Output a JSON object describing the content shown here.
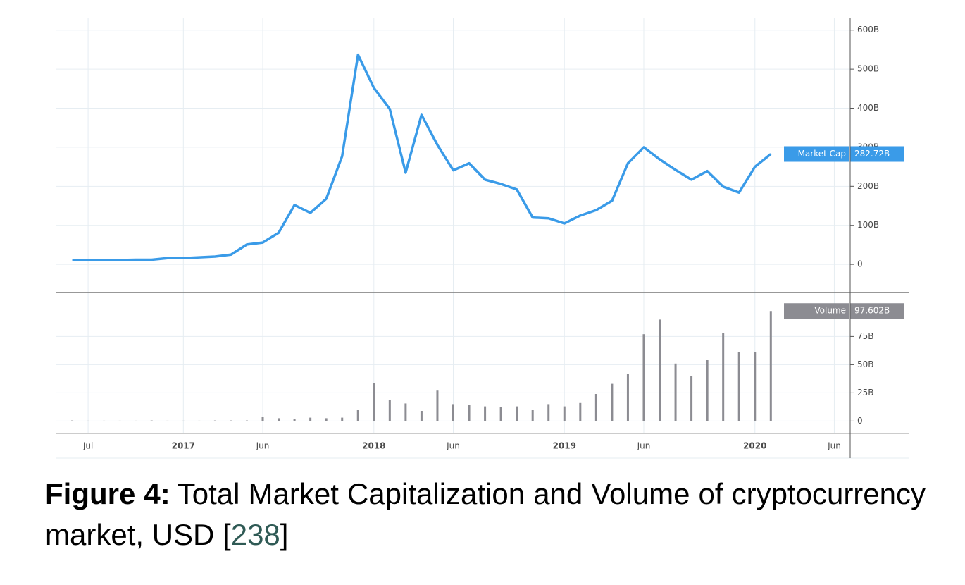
{
  "chart_data": [
    {
      "type": "line",
      "x": [
        "2016-06",
        "2016-07",
        "2016-08",
        "2016-09",
        "2016-10",
        "2016-11",
        "2016-12",
        "2017-01",
        "2017-02",
        "2017-03",
        "2017-04",
        "2017-05",
        "2017-06",
        "2017-07",
        "2017-08",
        "2017-09",
        "2017-10",
        "2017-11",
        "2017-12",
        "2018-01",
        "2018-02",
        "2018-03",
        "2018-04",
        "2018-05",
        "2018-06",
        "2018-07",
        "2018-08",
        "2018-09",
        "2018-10",
        "2018-11",
        "2018-12",
        "2019-01",
        "2019-02",
        "2019-03",
        "2019-04",
        "2019-05",
        "2019-06",
        "2019-07",
        "2019-08",
        "2019-09",
        "2019-10",
        "2019-11",
        "2019-12",
        "2020-01",
        "2020-02"
      ],
      "series": [
        {
          "name": "Market Cap",
          "color": "#3a9be8",
          "values": [
            11,
            11,
            11,
            11,
            12,
            12,
            16,
            16,
            18,
            20,
            25,
            51,
            56,
            81,
            152,
            132,
            168,
            277,
            537,
            452,
            398,
            235,
            383,
            306,
            241,
            259,
            217,
            206,
            192,
            120,
            118,
            105,
            125,
            139,
            163,
            259,
            300,
            269,
            242,
            217,
            239,
            199,
            184,
            250,
            282.72
          ],
          "last_label": "282.72B"
        }
      ],
      "xlim": [
        "2016-05",
        "2020-07"
      ],
      "ylim": [
        -72,
        632
      ],
      "yticks": [
        {
          "value": 0,
          "label": "0"
        },
        {
          "value": 100,
          "label": "100B"
        },
        {
          "value": 200,
          "label": "200B"
        },
        {
          "value": 300,
          "label": "300B"
        },
        {
          "value": 400,
          "label": "400B"
        },
        {
          "value": 500,
          "label": "500B"
        },
        {
          "value": 600,
          "label": "600B"
        }
      ],
      "grid": true
    },
    {
      "type": "bar",
      "x": [
        "2016-06",
        "2016-07",
        "2016-08",
        "2016-09",
        "2016-10",
        "2016-11",
        "2016-12",
        "2017-01",
        "2017-02",
        "2017-03",
        "2017-04",
        "2017-05",
        "2017-06",
        "2017-07",
        "2017-08",
        "2017-09",
        "2017-10",
        "2017-11",
        "2017-12",
        "2018-01",
        "2018-02",
        "2018-03",
        "2018-04",
        "2018-05",
        "2018-06",
        "2018-07",
        "2018-08",
        "2018-09",
        "2018-10",
        "2018-11",
        "2018-12",
        "2019-01",
        "2019-02",
        "2019-03",
        "2019-04",
        "2019-05",
        "2019-06",
        "2019-07",
        "2019-08",
        "2019-09",
        "2019-10",
        "2019-11",
        "2019-12",
        "2020-01",
        "2020-02"
      ],
      "series": [
        {
          "name": "Volume",
          "color": "#8c8c92",
          "values": [
            0.5,
            0.3,
            0.3,
            0.3,
            0.3,
            0.5,
            0.3,
            0.3,
            0.3,
            0.5,
            0.5,
            0.5,
            3.7,
            2.5,
            2,
            3,
            2.5,
            3,
            10,
            34,
            19,
            15.6,
            9,
            27,
            15,
            14,
            13,
            12.5,
            13,
            10,
            15,
            13,
            16,
            24,
            33,
            42,
            77,
            90,
            51,
            40,
            54,
            78,
            61,
            61,
            97.602
          ],
          "last_label": "97.602B"
        }
      ],
      "xlim": [
        "2016-05",
        "2020-07"
      ],
      "ylim": [
        -11,
        114
      ],
      "yticks": [
        {
          "value": 0,
          "label": "0"
        },
        {
          "value": 25,
          "label": "25B"
        },
        {
          "value": 50,
          "label": "50B"
        },
        {
          "value": 75,
          "label": "75B"
        }
      ],
      "xticks": [
        {
          "value": "2016-07",
          "label": "Jul"
        },
        {
          "value": "2017-01",
          "label": "2017"
        },
        {
          "value": "2017-06",
          "label": "Jun"
        },
        {
          "value": "2018-01",
          "label": "2018"
        },
        {
          "value": "2018-06",
          "label": "Jun"
        },
        {
          "value": "2019-01",
          "label": "2019"
        },
        {
          "value": "2019-06",
          "label": "Jun"
        },
        {
          "value": "2020-01",
          "label": "2020"
        },
        {
          "value": "2020-06",
          "label": "Jun"
        }
      ],
      "grid": true
    }
  ],
  "caption": {
    "label": "Figure 4:",
    "text": "Total Market Capitalization and Volume of cryptocurrency market, USD [",
    "ref": "238",
    "close": "]"
  }
}
